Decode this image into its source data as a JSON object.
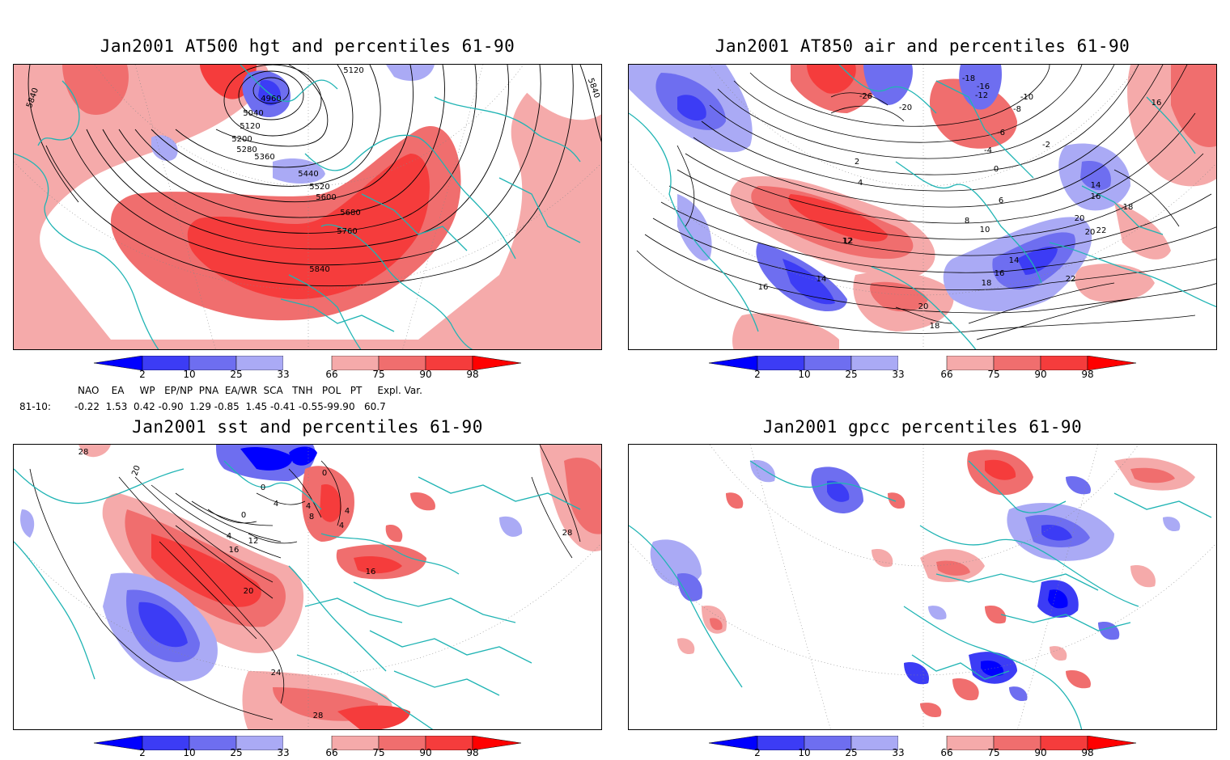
{
  "panels": [
    {
      "title": "Jan2001 AT500 hgt and percentiles 61-90",
      "contour_labels": [
        "4960",
        "5040",
        "5120",
        "5200",
        "5280",
        "5360",
        "5440",
        "5520",
        "5600",
        "5680",
        "5760",
        "5840",
        "5120",
        "5840",
        "5840"
      ]
    },
    {
      "title": "Jan2001 AT850 air and percentiles 61-90",
      "contour_labels": [
        "-26",
        "-20",
        "-18",
        "-16",
        "-12",
        "-10",
        "-8",
        "-6",
        "-4",
        "-2",
        "0",
        "2",
        "4",
        "6",
        "8",
        "10",
        "12",
        "14",
        "16",
        "18",
        "20",
        "22",
        "16",
        "14",
        "16",
        "18",
        "20",
        "22",
        "14",
        "12",
        "16",
        "18",
        "20"
      ]
    },
    {
      "title": "Jan2001 sst and percentiles 61-90",
      "contour_labels": [
        "28",
        "20",
        "0",
        "0",
        "4",
        "4",
        "8",
        "4",
        "4",
        "12",
        "16",
        "20",
        "24",
        "28",
        "28",
        "16",
        "4",
        "0"
      ]
    },
    {
      "title": "Jan2001 gpcc percentiles 61-90",
      "contour_labels": []
    }
  ],
  "colorbar": {
    "labels": [
      "2",
      "10",
      "25",
      "33",
      "66",
      "75",
      "90",
      "98"
    ],
    "colors": {
      "blue_dark": "#0000ff",
      "blue_mid": "#3c3cf5",
      "blue_light": "#6e6ef0",
      "blue_pale": "#aaaaf5",
      "white": "#ffffff",
      "red_pale": "#f5aaaa",
      "red_light": "#f06e6e",
      "red_mid": "#f53c3c",
      "red_dark": "#ff0000"
    }
  },
  "indices": {
    "header": "NAO    EA     WP   EP/NP  PNA  EA/WR  SCA   TNH   POL   PT     Expl. Var.",
    "row_label": "81-10:",
    "values": "-0.22  1.53  0.42 -0.90  1.29 -0.85  1.45 -0.41 -0.55-99.90   60.7"
  },
  "map_colors": {
    "coast": "#20b4b4",
    "contour": "#000000",
    "grid": "#888888"
  }
}
